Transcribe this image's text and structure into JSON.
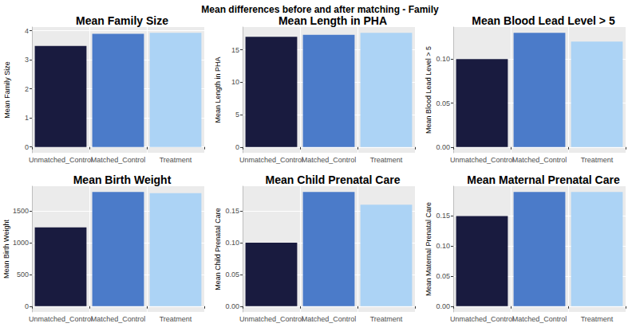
{
  "title": "Mean differences before and after matching - Family",
  "chart_data": [
    {
      "type": "bar",
      "title": "Mean Family Size",
      "ylabel": "Mean Family Size",
      "categories": [
        "Unmatched_Control",
        "Matched_Control",
        "Treatment"
      ],
      "values": [
        3.48,
        3.9,
        3.93
      ],
      "colors": [
        "#191b3f",
        "#4b7bc9",
        "#acd3f5"
      ],
      "ylim": [
        -0.2,
        4.13
      ],
      "yticks": [
        0,
        1,
        2,
        3,
        4
      ],
      "grid": true
    },
    {
      "type": "bar",
      "title": "Mean Length in PHA",
      "ylabel": "Mean Length in PHA",
      "categories": [
        "Unmatched_Control",
        "Matched_Control",
        "Treatment"
      ],
      "values": [
        17,
        17.3,
        17.6
      ],
      "colors": [
        "#191b3f",
        "#4b7bc9",
        "#acd3f5"
      ],
      "ylim": [
        -0.88,
        18.5
      ],
      "yticks": [
        0,
        5,
        10,
        15
      ],
      "grid": true
    },
    {
      "type": "bar",
      "title": "Mean Blood Lead Level > 5",
      "ylabel": "Mean Blood Lead Level > 5",
      "categories": [
        "Unmatched_Control",
        "Matched_Control",
        "Treatment"
      ],
      "values": [
        0.1,
        0.13,
        0.12
      ],
      "colors": [
        "#191b3f",
        "#4b7bc9",
        "#acd3f5"
      ],
      "ylim": [
        -0.0065,
        0.1365
      ],
      "yticks": [
        {
          "value": 0,
          "label": "0.00"
        },
        {
          "value": 0.05,
          "label": "0.05"
        },
        {
          "value": 0.1,
          "label": "0.10"
        }
      ],
      "grid": true
    },
    {
      "type": "bar",
      "title": "Mean Birth Weight",
      "ylabel": "Mean Birth Weight",
      "categories": [
        "Unmatched_Control",
        "Matched_Control",
        "Treatment"
      ],
      "values": [
        1240,
        1800,
        1780
      ],
      "colors": [
        "#191b3f",
        "#4b7bc9",
        "#acd3f5"
      ],
      "ylim": [
        -90,
        1890
      ],
      "yticks": [
        0,
        500,
        1000,
        1500
      ],
      "grid": true
    },
    {
      "type": "bar",
      "title": "Mean Child Prenatal Care",
      "ylabel": "Mean Child Prenatal Care",
      "categories": [
        "Unmatched_Control",
        "Matched_Control",
        "Treatment"
      ],
      "values": [
        0.1,
        0.18,
        0.16
      ],
      "colors": [
        "#191b3f",
        "#4b7bc9",
        "#acd3f5"
      ],
      "ylim": [
        -0.009,
        0.189
      ],
      "yticks": [
        {
          "value": 0,
          "label": "0.00"
        },
        {
          "value": 0.05,
          "label": "0.05"
        },
        {
          "value": 0.1,
          "label": "0.10"
        },
        {
          "value": 0.15,
          "label": "0.15"
        }
      ],
      "grid": true
    },
    {
      "type": "bar",
      "title": "Mean Maternal Prenatal Care",
      "ylabel": "Mean Maternal Prenatal Care",
      "categories": [
        "Unmatched_Control",
        "Matched_Control",
        "Treatment"
      ],
      "values": [
        0.15,
        0.19,
        0.19
      ],
      "colors": [
        "#191b3f",
        "#4b7bc9",
        "#acd3f5"
      ],
      "ylim": [
        -0.0095,
        0.1995
      ],
      "yticks": [
        {
          "value": 0,
          "label": "0.00"
        },
        {
          "value": 0.05,
          "label": "0.05"
        },
        {
          "value": 0.1,
          "label": "0.10"
        },
        {
          "value": 0.15,
          "label": "0.15"
        }
      ],
      "grid": true
    }
  ]
}
